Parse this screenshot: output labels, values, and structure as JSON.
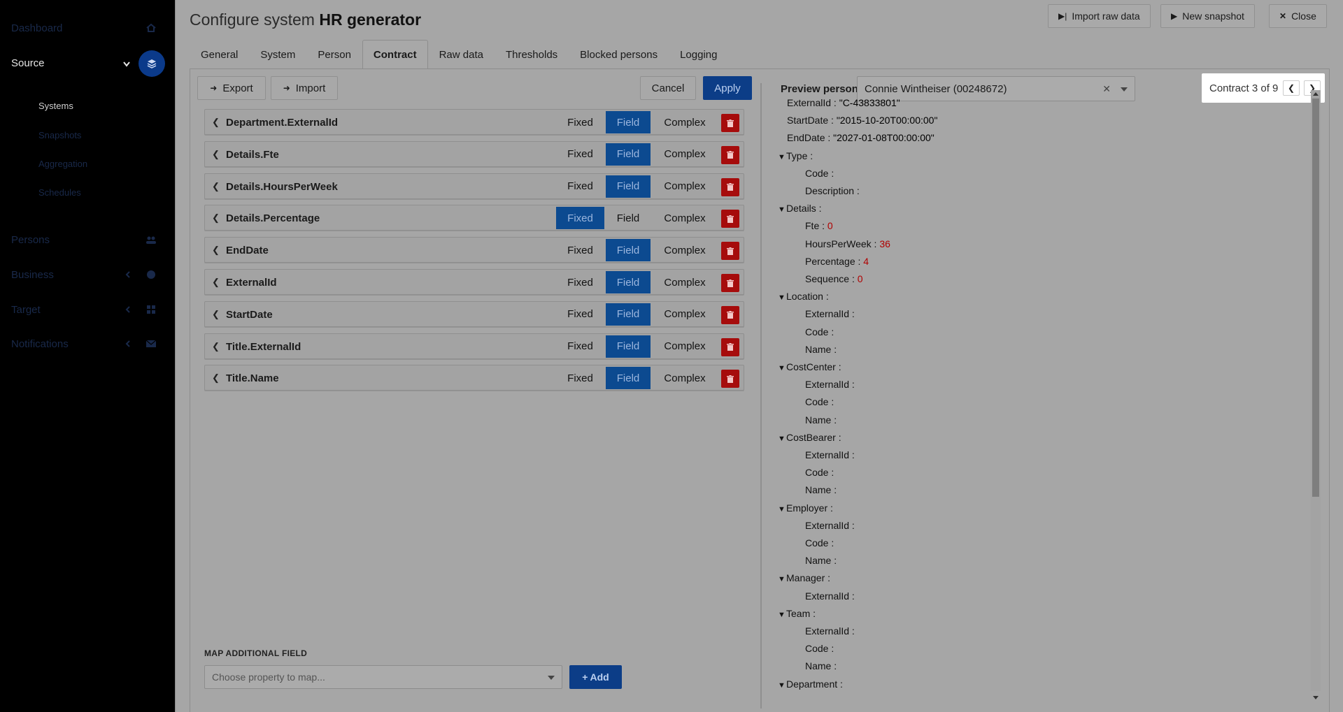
{
  "sidebar": {
    "dashboard": "Dashboard",
    "source": "Source",
    "source_sub": [
      "Systems",
      "Snapshots",
      "Aggregation",
      "Schedules"
    ],
    "persons": "Persons",
    "business": "Business",
    "target": "Target",
    "notifications": "Notifications"
  },
  "header": {
    "title_prefix": "Configure system",
    "title_name": "HR generator",
    "import_raw": "Import raw data",
    "new_snapshot": "New snapshot",
    "close": "Close"
  },
  "tabs": [
    "General",
    "System",
    "Person",
    "Contract",
    "Raw data",
    "Thresholds",
    "Blocked persons",
    "Logging"
  ],
  "toolbar": {
    "export": "Export",
    "import": "Import",
    "cancel": "Cancel",
    "apply": "Apply"
  },
  "mapping": {
    "modes": {
      "fixed": "Fixed",
      "field": "Field",
      "complex": "Complex"
    },
    "rows": [
      {
        "label": "Department.ExternalId",
        "selected": "field"
      },
      {
        "label": "Details.Fte",
        "selected": "field"
      },
      {
        "label": "Details.HoursPerWeek",
        "selected": "field"
      },
      {
        "label": "Details.Percentage",
        "selected": "fixed"
      },
      {
        "label": "EndDate",
        "selected": "field"
      },
      {
        "label": "ExternalId",
        "selected": "field"
      },
      {
        "label": "StartDate",
        "selected": "field"
      },
      {
        "label": "Title.ExternalId",
        "selected": "field"
      },
      {
        "label": "Title.Name",
        "selected": "field"
      }
    ],
    "additional_label": "MAP ADDITIONAL FIELD",
    "additional_placeholder": "Choose property to map...",
    "add": "Add"
  },
  "preview": {
    "label": "Preview person",
    "person": "Connie Wintheiser (00248672)",
    "pager": "Contract 3 of 9"
  },
  "tree": [
    {
      "key": "ExternalId",
      "val": "\"C-43833801\"",
      "t": "s",
      "lvl": 0
    },
    {
      "key": "StartDate",
      "val": "\"2015-10-20T00:00:00\"",
      "t": "s",
      "lvl": 0
    },
    {
      "key": "EndDate",
      "val": "\"2027-01-08T00:00:00\"",
      "t": "s",
      "lvl": 0
    },
    {
      "key": "Type",
      "group": true,
      "lvl": 0
    },
    {
      "key": "Code",
      "lvl": 1
    },
    {
      "key": "Description",
      "lvl": 1
    },
    {
      "key": "Details",
      "group": true,
      "lvl": 0
    },
    {
      "key": "Fte",
      "val": "0",
      "t": "n",
      "lvl": 1
    },
    {
      "key": "HoursPerWeek",
      "val": "36",
      "t": "n",
      "lvl": 1
    },
    {
      "key": "Percentage",
      "val": "4",
      "t": "n",
      "lvl": 1
    },
    {
      "key": "Sequence",
      "val": "0",
      "t": "n",
      "lvl": 1
    },
    {
      "key": "Location",
      "group": true,
      "lvl": 0
    },
    {
      "key": "ExternalId",
      "lvl": 1
    },
    {
      "key": "Code",
      "lvl": 1
    },
    {
      "key": "Name",
      "lvl": 1
    },
    {
      "key": "CostCenter",
      "group": true,
      "lvl": 0
    },
    {
      "key": "ExternalId",
      "lvl": 1
    },
    {
      "key": "Code",
      "lvl": 1
    },
    {
      "key": "Name",
      "lvl": 1
    },
    {
      "key": "CostBearer",
      "group": true,
      "lvl": 0
    },
    {
      "key": "ExternalId",
      "lvl": 1
    },
    {
      "key": "Code",
      "lvl": 1
    },
    {
      "key": "Name",
      "lvl": 1
    },
    {
      "key": "Employer",
      "group": true,
      "lvl": 0
    },
    {
      "key": "ExternalId",
      "lvl": 1
    },
    {
      "key": "Code",
      "lvl": 1
    },
    {
      "key": "Name",
      "lvl": 1
    },
    {
      "key": "Manager",
      "group": true,
      "lvl": 0
    },
    {
      "key": "ExternalId",
      "lvl": 1
    },
    {
      "key": "Team",
      "group": true,
      "lvl": 0
    },
    {
      "key": "ExternalId",
      "lvl": 1
    },
    {
      "key": "Code",
      "lvl": 1
    },
    {
      "key": "Name",
      "lvl": 1
    },
    {
      "key": "Department",
      "group": true,
      "lvl": 0
    }
  ]
}
